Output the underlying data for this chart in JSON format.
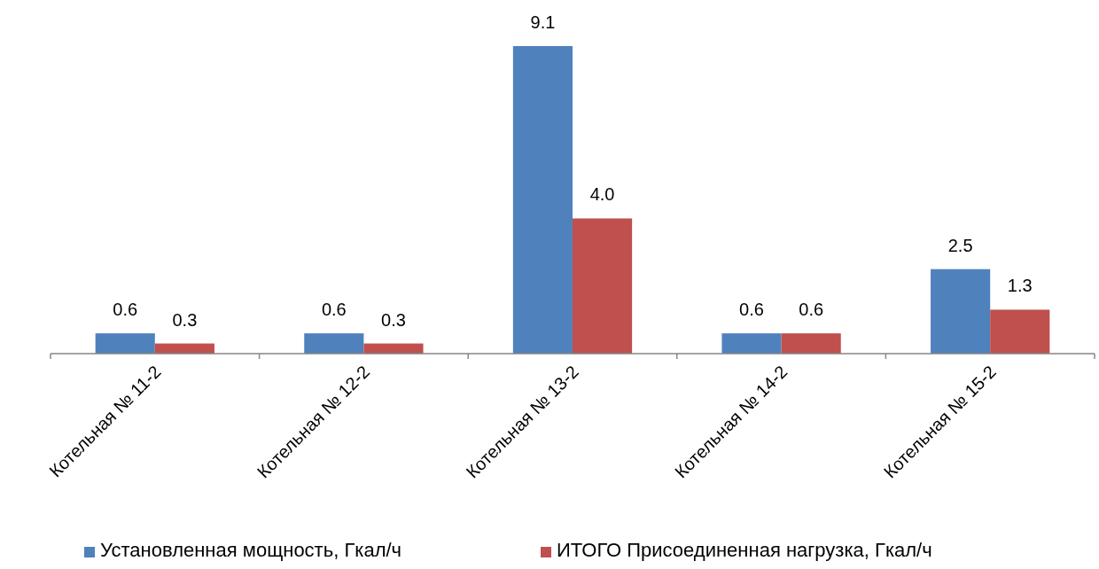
{
  "chart_data": {
    "type": "bar",
    "categories": [
      "Котельная № 11-2",
      "Котельная № 12-2",
      "Котельная № 13-2",
      "Котельная № 14-2",
      "Котельная № 15-2"
    ],
    "series": [
      {
        "name": "Установленная мощность, Гкал/ч",
        "color": "#4f81bd",
        "values": [
          0.6,
          0.6,
          9.1,
          0.6,
          2.5
        ],
        "value_labels": [
          "0.6",
          "0.6",
          "9.1",
          "0.6",
          "2.5"
        ]
      },
      {
        "name": "ИТОГО Присоединенная нагрузка, Гкал/ч",
        "color": "#c0504d",
        "values": [
          0.3,
          0.3,
          4.0,
          0.6,
          1.3
        ],
        "value_labels": [
          "0.3",
          "0.3",
          "4.0",
          "0.6",
          "1.3"
        ]
      }
    ],
    "grid": false,
    "legend": "bottom",
    "tick_labels": "x"
  }
}
